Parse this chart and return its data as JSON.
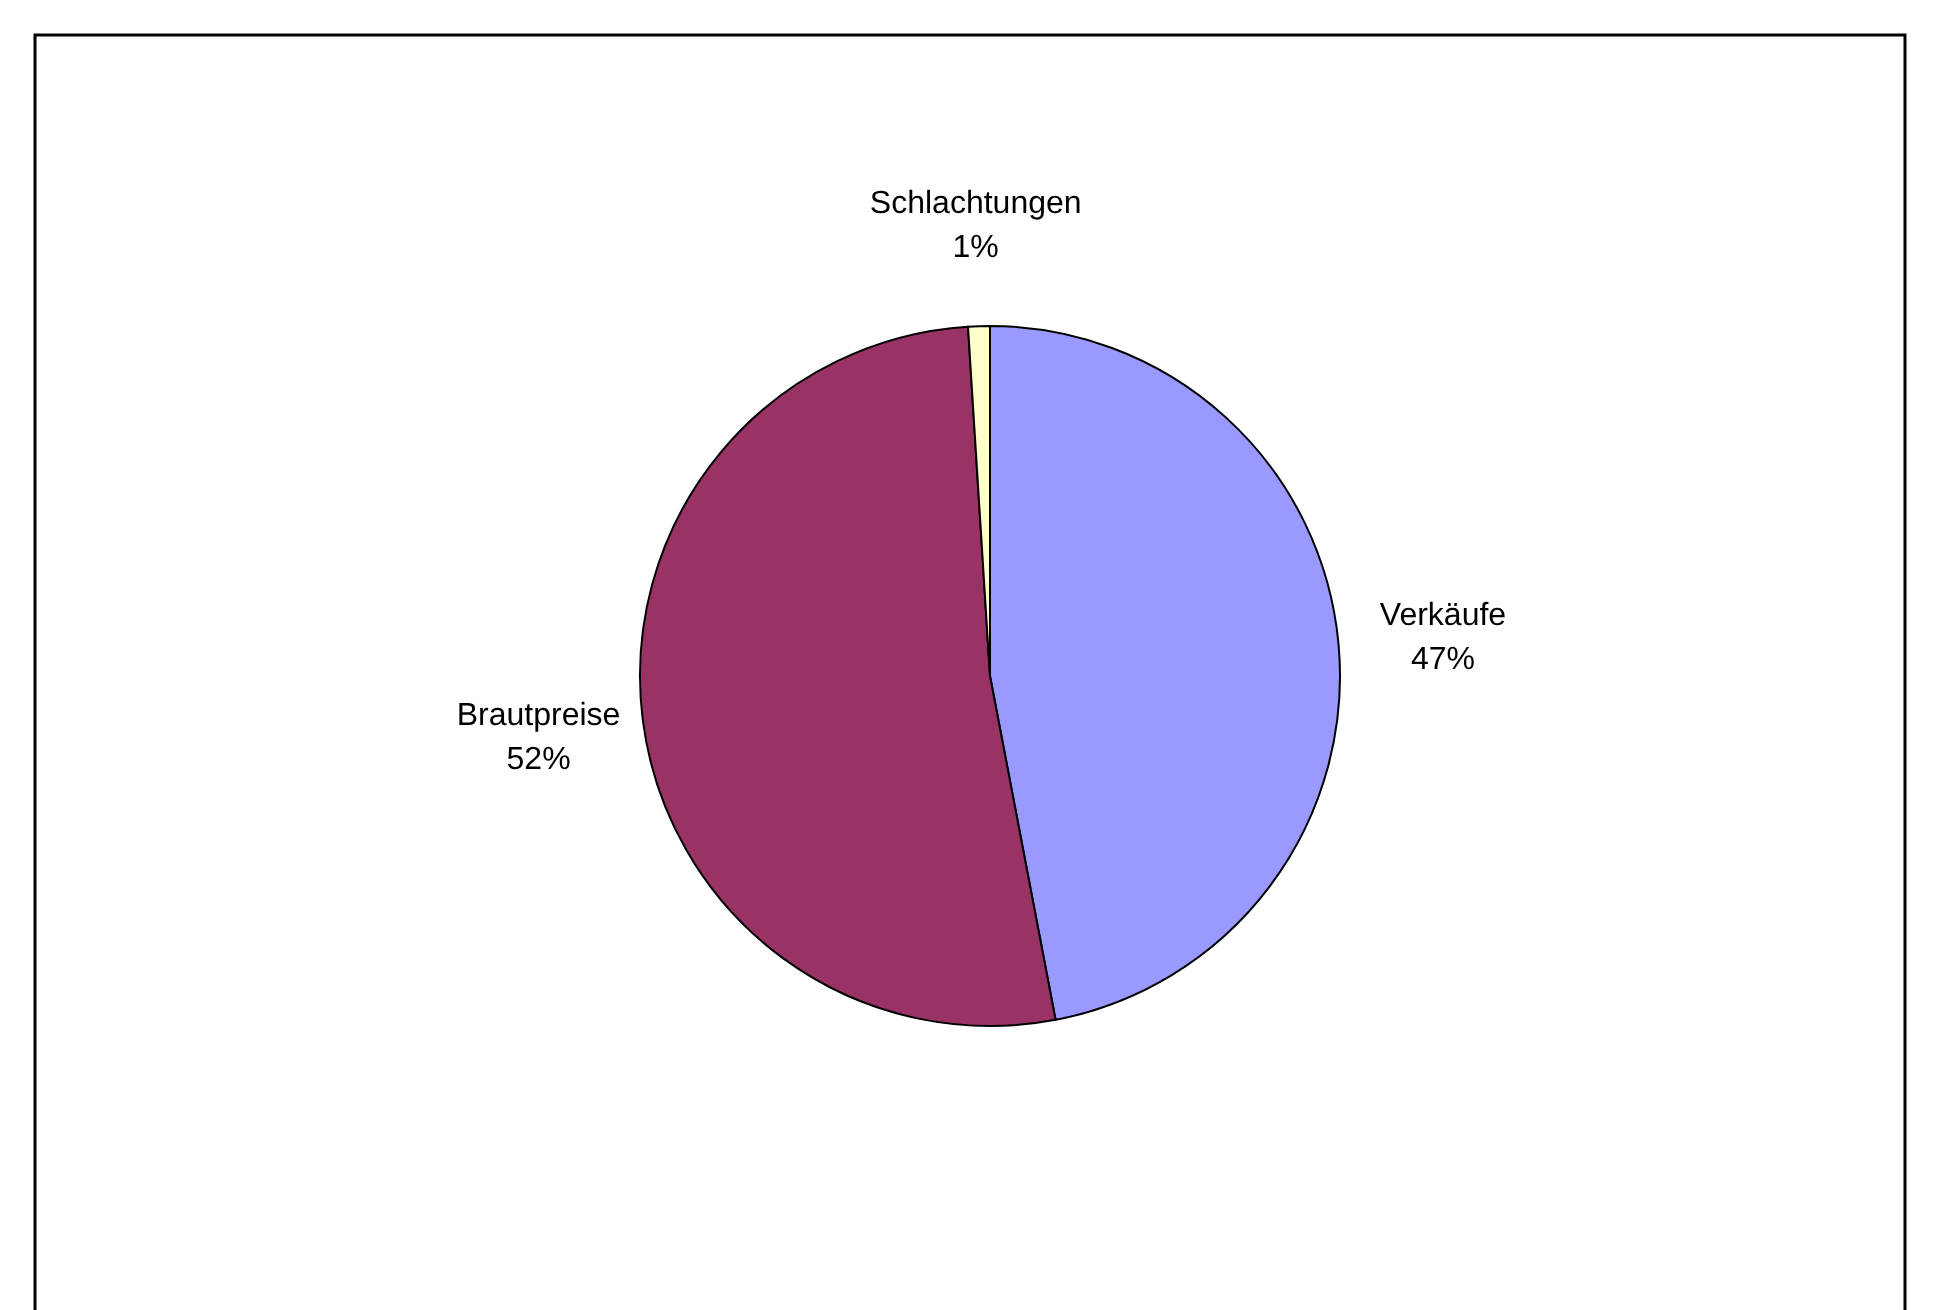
{
  "chart_data": {
    "type": "pie",
    "categories": [
      "Verkäufe",
      "Brautpreise",
      "Schlachtungen"
    ],
    "values": [
      47,
      52,
      1
    ],
    "colors": [
      "#9999ff",
      "#993366",
      "#ffffcc"
    ],
    "value_labels": [
      "47%",
      "52%",
      "1%"
    ]
  }
}
